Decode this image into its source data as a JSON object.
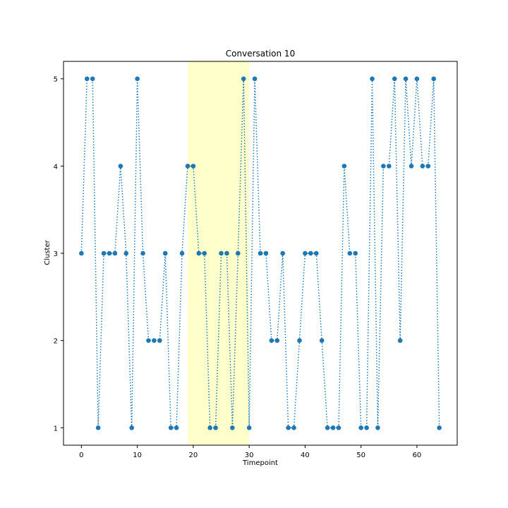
{
  "chart_data": {
    "type": "line",
    "title": "Conversation 10",
    "xlabel": "Timepoint",
    "ylabel": "Cluster",
    "xlim": [
      -3.2,
      67.2
    ],
    "ylim": [
      0.8,
      5.2
    ],
    "xticks": [
      0,
      10,
      20,
      30,
      40,
      50,
      60
    ],
    "yticks": [
      1,
      2,
      3,
      4,
      5
    ],
    "grid": false,
    "highlight_span": [
      19,
      30
    ],
    "colors": {
      "series": "#1f77b4",
      "highlight": "#ffffcc"
    },
    "x": [
      0,
      1,
      2,
      3,
      4,
      5,
      6,
      7,
      8,
      9,
      10,
      11,
      12,
      13,
      14,
      15,
      16,
      17,
      18,
      19,
      20,
      21,
      22,
      23,
      24,
      25,
      26,
      27,
      28,
      29,
      30,
      31,
      32,
      33,
      34,
      35,
      36,
      37,
      38,
      39,
      40,
      41,
      42,
      43,
      44,
      45,
      46,
      47,
      48,
      49,
      50,
      51,
      52,
      53,
      54,
      55,
      56,
      57,
      58,
      59,
      60,
      61,
      62,
      63,
      64
    ],
    "values": [
      3,
      5,
      5,
      1,
      3,
      3,
      3,
      4,
      3,
      1,
      5,
      3,
      2,
      2,
      2,
      3,
      1,
      1,
      3,
      4,
      4,
      3,
      3,
      1,
      1,
      3,
      3,
      1,
      3,
      5,
      1,
      5,
      3,
      3,
      2,
      2,
      3,
      1,
      1,
      2,
      3,
      3,
      3,
      2,
      1,
      1,
      1,
      4,
      3,
      3,
      1,
      1,
      5,
      1,
      4,
      4,
      5,
      2,
      5,
      4,
      5,
      4,
      4,
      5,
      1
    ]
  }
}
